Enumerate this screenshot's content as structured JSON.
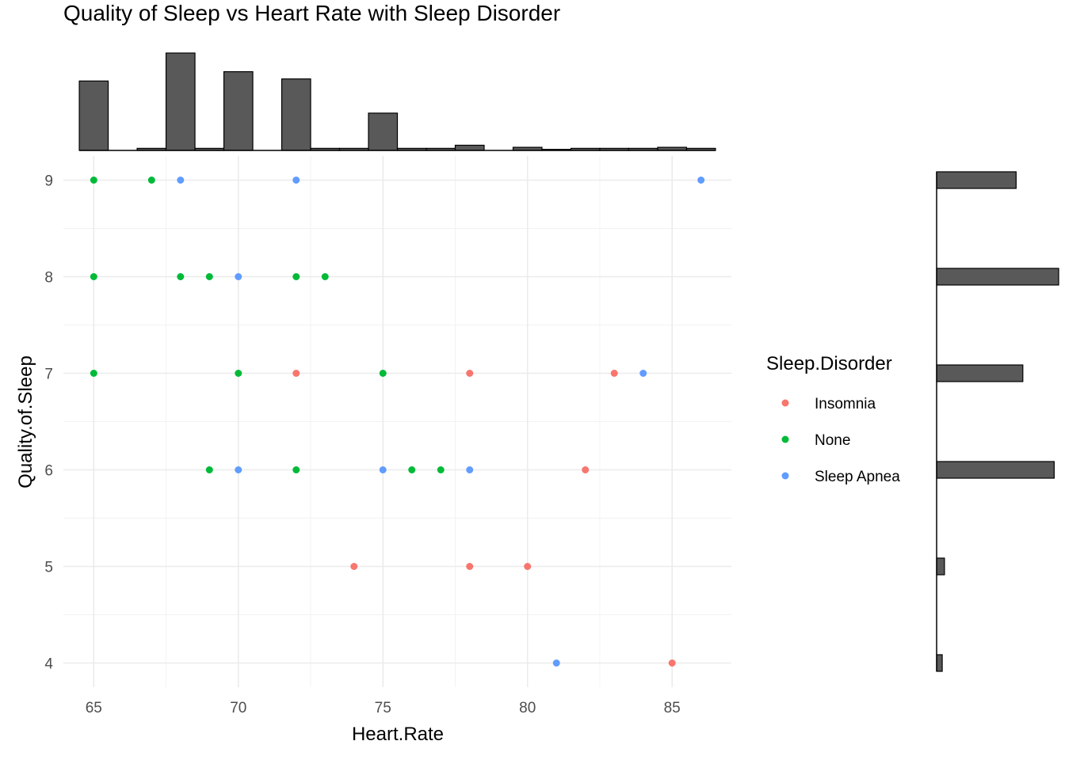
{
  "chart_data": {
    "type": "scatter",
    "title": "Quality of Sleep vs Heart Rate with Sleep Disorder",
    "xlabel": "Heart.Rate",
    "ylabel": "Quality.of.Sleep",
    "xlim": [
      63.95,
      87.05
    ],
    "ylim": [
      3.75,
      9.25
    ],
    "x_ticks": [
      65,
      70,
      75,
      80,
      85
    ],
    "y_ticks": [
      4,
      5,
      6,
      7,
      8,
      9
    ],
    "grid": true,
    "legend": {
      "title": "Sleep.Disorder",
      "placement": "right",
      "entries": [
        {
          "label": "Insomnia",
          "color": "#F8766D"
        },
        {
          "label": "None",
          "color": "#00BA38"
        },
        {
          "label": "Sleep Apnea",
          "color": "#619CFF"
        }
      ]
    },
    "series": [
      {
        "name": "Insomnia",
        "color": "#F8766D",
        "points": [
          [
            72,
            7
          ],
          [
            78,
            7
          ],
          [
            83,
            7
          ],
          [
            82,
            6
          ],
          [
            74,
            5
          ],
          [
            78,
            5
          ],
          [
            80,
            5
          ],
          [
            85,
            4
          ]
        ]
      },
      {
        "name": "None",
        "color": "#00BA38",
        "points": [
          [
            65,
            9
          ],
          [
            67,
            9
          ],
          [
            65,
            8
          ],
          [
            68,
            8
          ],
          [
            69,
            8
          ],
          [
            72,
            8
          ],
          [
            73,
            8
          ],
          [
            65,
            7
          ],
          [
            70,
            7
          ],
          [
            75,
            7
          ],
          [
            69,
            6
          ],
          [
            72,
            6
          ],
          [
            76,
            6
          ],
          [
            77,
            6
          ]
        ]
      },
      {
        "name": "Sleep Apnea",
        "color": "#619CFF",
        "points": [
          [
            68,
            9
          ],
          [
            72,
            9
          ],
          [
            86,
            9
          ],
          [
            70,
            8
          ],
          [
            84,
            7
          ],
          [
            70,
            6
          ],
          [
            75,
            6
          ],
          [
            78,
            6
          ],
          [
            81,
            4
          ]
        ]
      }
    ],
    "marginal_x_histogram": {
      "bin_centers": [
        65,
        66,
        67,
        68,
        69,
        70,
        71,
        72,
        73,
        74,
        75,
        76,
        77,
        78,
        79,
        80,
        81,
        82,
        83,
        84,
        85,
        86
      ],
      "counts": [
        67,
        0,
        2,
        94,
        2,
        76,
        0,
        69,
        2,
        2,
        36,
        2,
        2,
        5,
        0,
        3,
        1,
        2,
        2,
        2,
        3,
        2
      ]
    },
    "marginal_y_histogram": {
      "bin_centers": [
        4,
        5,
        6,
        7,
        8,
        9
      ],
      "counts": [
        5,
        7,
        105,
        77,
        109,
        71
      ]
    }
  }
}
